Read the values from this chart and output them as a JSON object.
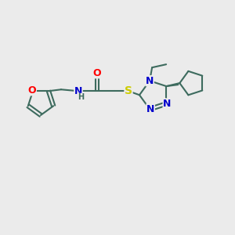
{
  "bg_color": "#ebebeb",
  "bond_color": "#3d6b5e",
  "bond_lw": 1.5,
  "atom_colors": {
    "O": "#ff0000",
    "N": "#0000cc",
    "S": "#cccc00",
    "H": "#3d6b5e"
  },
  "figsize": [
    3.0,
    3.0
  ],
  "dpi": 100,
  "xlim": [
    0,
    300
  ],
  "ylim": [
    0,
    300
  ]
}
